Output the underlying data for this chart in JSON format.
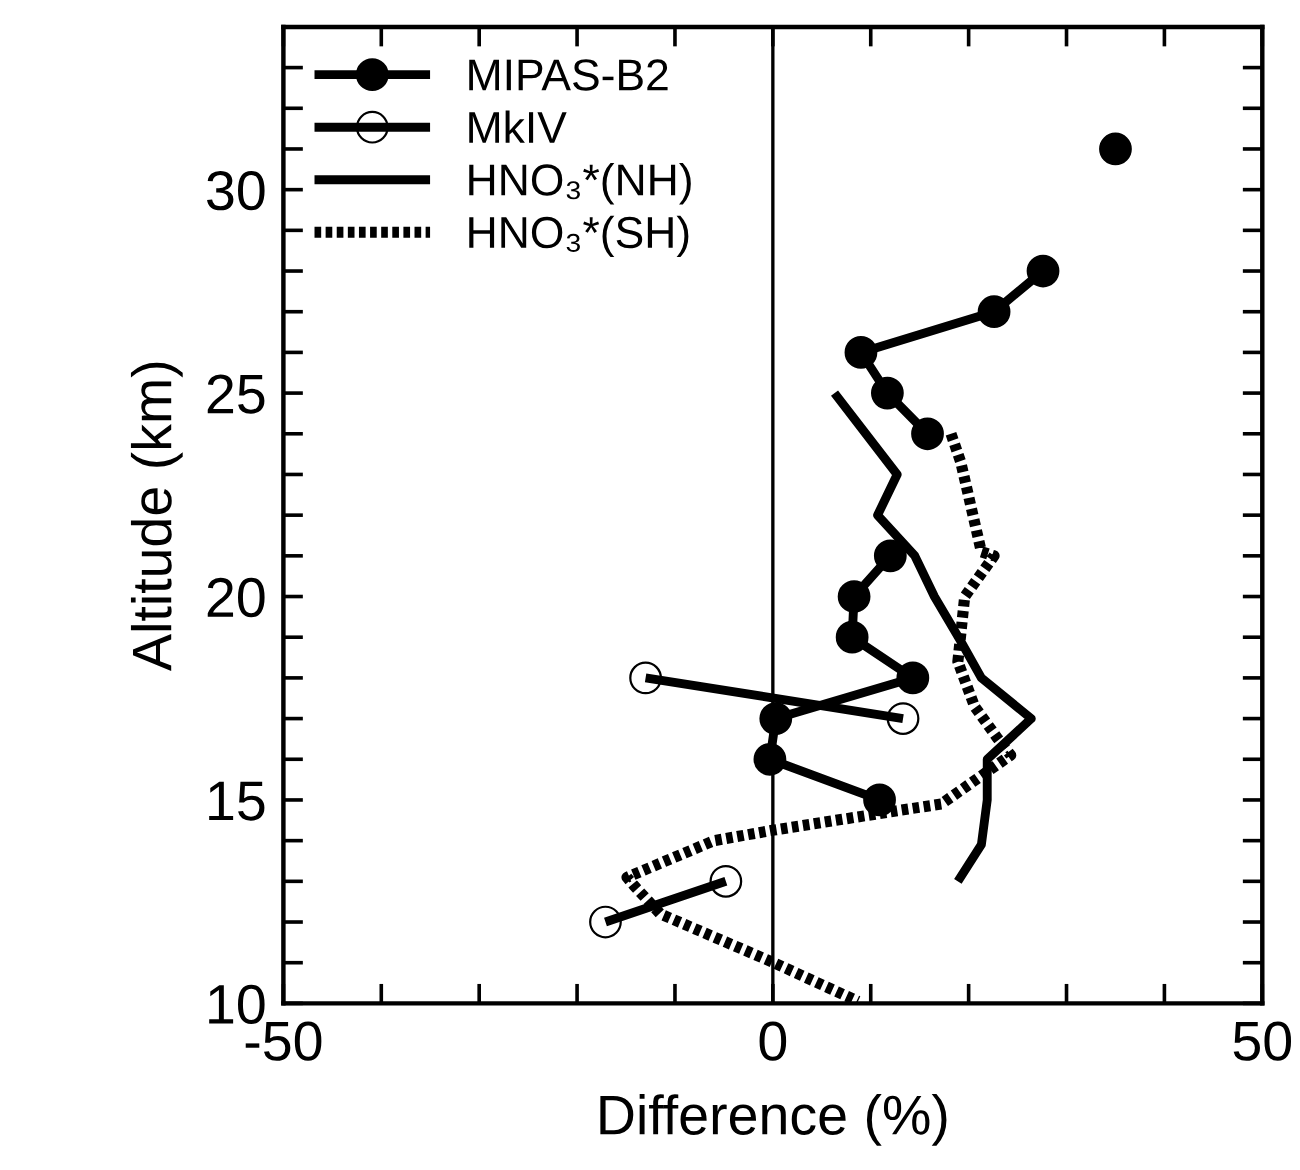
{
  "chart_data": {
    "type": "line",
    "xlabel": "Difference (%)",
    "ylabel": "Altitude (km)",
    "xlim": [
      -50,
      50
    ],
    "ylim": [
      10,
      34
    ],
    "xticks": [
      -50,
      {
        "value": -40,
        "label": null
      },
      {
        "value": -30,
        "label": null
      },
      {
        "value": -20,
        "label": null
      },
      {
        "value": -10,
        "label": null
      },
      0,
      {
        "value": 10,
        "label": null
      },
      {
        "value": 20,
        "label": null
      },
      {
        "value": 30,
        "label": null
      },
      {
        "value": 40,
        "label": null
      },
      50
    ],
    "yticks": [
      10,
      {
        "value": 11,
        "label": null
      },
      {
        "value": 12,
        "label": null
      },
      {
        "value": 13,
        "label": null
      },
      {
        "value": 14,
        "label": null
      },
      15,
      {
        "value": 16,
        "label": null
      },
      {
        "value": 17,
        "label": null
      },
      {
        "value": 18,
        "label": null
      },
      {
        "value": 19,
        "label": null
      },
      20,
      {
        "value": 21,
        "label": null
      },
      {
        "value": 22,
        "label": null
      },
      {
        "value": 23,
        "label": null
      },
      {
        "value": 24,
        "label": null
      },
      25,
      {
        "value": 26,
        "label": null
      },
      {
        "value": 27,
        "label": null
      },
      {
        "value": 28,
        "label": null
      },
      {
        "value": 29,
        "label": null
      },
      30,
      {
        "value": 31,
        "label": null
      },
      {
        "value": 32,
        "label": null
      },
      {
        "value": 33,
        "label": null
      }
    ],
    "grid": false,
    "legend": "top left",
    "ref_lines": [
      {
        "axis": "x",
        "value": 0,
        "color": "#000000",
        "line_style": "solid"
      }
    ],
    "series": [
      {
        "name": "MIPAS-B2",
        "color": "#000000",
        "marker": "circle",
        "line_style": "solid",
        "x": [
          35.0,
          null,
          null,
          27.6,
          22.6,
          9.0,
          11.7,
          15.8,
          null,
          null,
          12.0,
          8.3,
          8.1,
          14.3,
          0.3,
          -0.3,
          10.9
        ],
        "values": [
          31,
          null,
          null,
          28,
          27,
          26,
          25,
          24,
          null,
          null,
          21,
          20,
          19,
          18,
          17,
          16,
          15
        ]
      },
      {
        "name": "MkIV",
        "color": "#000000",
        "marker": "circle_open",
        "line_style": "solid",
        "x": [
          -13.0,
          13.3,
          null,
          null,
          null,
          -4.8,
          -17.1
        ],
        "values": [
          18,
          17,
          null,
          null,
          null,
          13,
          12
        ]
      },
      {
        "name": "HNO₃*(NH)",
        "color": "#000000",
        "marker": "none",
        "line_style": "solid",
        "x": [
          6.3,
          12.7,
          10.7,
          14.5,
          16.5,
          19.2,
          21.3,
          26.4,
          21.9,
          21.9,
          21.3,
          18.9
        ],
        "values": [
          25,
          23,
          22,
          21,
          20,
          18.9,
          18,
          17,
          16,
          15,
          13.9,
          13
        ]
      },
      {
        "name": "HNO₃*(SH)",
        "color": "#000000",
        "marker": "none",
        "line_style": "dotted",
        "x": [
          18.2,
          19.2,
          21.3,
          22.6,
          19.6,
          18.9,
          20.6,
          23.0,
          24.3,
          17.2,
          13.1,
          0.1,
          -6.0,
          -14.9,
          -14.2,
          -11.5,
          0.1,
          8.7
        ],
        "values": [
          24,
          23.3,
          21.1,
          21.0,
          20.0,
          18.4,
          17.3,
          16.5,
          16.1,
          14.9,
          14.75,
          14.26,
          14.0,
          13.1,
          12.9,
          12.2,
          11.0,
          10.05
        ]
      }
    ]
  }
}
